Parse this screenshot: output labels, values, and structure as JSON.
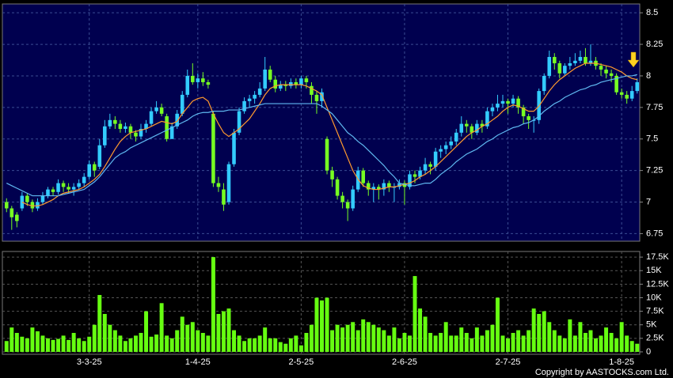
{
  "chart_data": [
    {
      "type": "candlestick",
      "up_color": "#33ccff",
      "down_color": "#77ff22",
      "ylim": [
        6.69,
        8.57
      ],
      "yticks": [
        6.75,
        7,
        7.25,
        7.5,
        7.75,
        8,
        8.25,
        8.5
      ],
      "grid": true,
      "candles": [
        [
          7.0,
          7.03,
          6.92,
          6.95
        ],
        [
          6.95,
          6.97,
          6.78,
          6.88
        ],
        [
          6.9,
          6.92,
          6.8,
          6.85
        ],
        [
          6.95,
          7.08,
          6.93,
          7.05
        ],
        [
          7.05,
          7.07,
          6.97,
          7.0
        ],
        [
          7.0,
          7.02,
          6.92,
          6.95
        ],
        [
          6.95,
          7.03,
          6.93,
          7.0
        ],
        [
          7.0,
          7.08,
          6.98,
          7.05
        ],
        [
          7.05,
          7.12,
          7.03,
          7.1
        ],
        [
          7.1,
          7.12,
          7.05,
          7.08
        ],
        [
          7.08,
          7.18,
          7.06,
          7.15
        ],
        [
          7.15,
          7.17,
          7.08,
          7.12
        ],
        [
          7.12,
          7.15,
          7.07,
          7.1
        ],
        [
          7.1,
          7.15,
          7.05,
          7.12
        ],
        [
          7.12,
          7.18,
          7.1,
          7.15
        ],
        [
          7.15,
          7.23,
          7.12,
          7.2
        ],
        [
          7.2,
          7.33,
          7.18,
          7.3
        ],
        [
          7.3,
          7.32,
          7.2,
          7.25
        ],
        [
          7.28,
          7.5,
          7.26,
          7.45
        ],
        [
          7.45,
          7.65,
          7.43,
          7.6
        ],
        [
          7.6,
          7.7,
          7.58,
          7.65
        ],
        [
          7.65,
          7.68,
          7.58,
          7.62
        ],
        [
          7.62,
          7.65,
          7.55,
          7.58
        ],
        [
          7.58,
          7.63,
          7.55,
          7.6
        ],
        [
          7.6,
          7.62,
          7.5,
          7.55
        ],
        [
          7.55,
          7.57,
          7.48,
          7.52
        ],
        [
          7.52,
          7.62,
          7.5,
          7.58
        ],
        [
          7.58,
          7.65,
          7.55,
          7.62
        ],
        [
          7.62,
          7.75,
          7.6,
          7.72
        ],
        [
          7.72,
          7.8,
          7.7,
          7.75
        ],
        [
          7.75,
          7.78,
          7.68,
          7.7
        ],
        [
          7.68,
          7.7,
          7.48,
          7.5
        ],
        [
          7.5,
          7.63,
          7.5,
          7.6
        ],
        [
          7.6,
          7.73,
          7.58,
          7.7
        ],
        [
          7.7,
          7.88,
          7.68,
          7.85
        ],
        [
          7.85,
          8.05,
          7.83,
          8.0
        ],
        [
          8.0,
          8.1,
          7.93,
          7.95
        ],
        [
          7.95,
          8.02,
          7.9,
          7.98
        ],
        [
          7.98,
          8.03,
          7.92,
          7.95
        ],
        [
          7.95,
          7.97,
          7.9,
          7.93
        ],
        [
          7.7,
          7.72,
          7.12,
          7.15
        ],
        [
          7.15,
          7.2,
          7.08,
          7.12
        ],
        [
          7.1,
          7.15,
          6.93,
          6.98
        ],
        [
          7.0,
          7.32,
          6.98,
          7.3
        ],
        [
          7.3,
          7.58,
          7.28,
          7.55
        ],
        [
          7.55,
          7.75,
          7.53,
          7.72
        ],
        [
          7.72,
          7.83,
          7.7,
          7.8
        ],
        [
          7.8,
          7.85,
          7.75,
          7.82
        ],
        [
          7.82,
          7.88,
          7.78,
          7.85
        ],
        [
          7.85,
          7.95,
          7.83,
          7.9
        ],
        [
          7.9,
          8.15,
          7.88,
          8.05
        ],
        [
          8.05,
          8.08,
          7.95,
          7.97
        ],
        [
          7.97,
          8.0,
          7.87,
          7.9
        ],
        [
          7.9,
          7.96,
          7.88,
          7.93
        ],
        [
          7.93,
          7.96,
          7.88,
          7.92
        ],
        [
          7.92,
          7.98,
          7.9,
          7.95
        ],
        [
          7.95,
          7.98,
          7.9,
          7.93
        ],
        [
          7.93,
          8.0,
          7.9,
          7.98
        ],
        [
          7.98,
          8.0,
          7.9,
          7.95
        ],
        [
          7.92,
          7.95,
          7.78,
          7.85
        ],
        [
          7.85,
          7.88,
          7.7,
          7.8
        ],
        [
          7.8,
          7.9,
          7.75,
          7.87
        ],
        [
          7.5,
          7.52,
          7.22,
          7.25
        ],
        [
          7.25,
          7.28,
          7.12,
          7.18
        ],
        [
          7.18,
          7.2,
          7.02,
          7.05
        ],
        [
          7.05,
          7.08,
          6.95,
          7.0
        ],
        [
          7.0,
          7.02,
          6.85,
          6.95
        ],
        [
          6.95,
          7.13,
          6.93,
          7.1
        ],
        [
          7.1,
          7.28,
          7.08,
          7.25
        ],
        [
          7.25,
          7.27,
          7.12,
          7.15
        ],
        [
          7.15,
          7.17,
          7.05,
          7.1
        ],
        [
          7.1,
          7.15,
          7.0,
          7.12
        ],
        [
          7.12,
          7.14,
          7.02,
          7.1
        ],
        [
          7.1,
          7.18,
          7.05,
          7.15
        ],
        [
          7.15,
          7.17,
          7.08,
          7.12
        ],
        [
          7.12,
          7.15,
          7.0,
          7.12
        ],
        [
          7.12,
          7.18,
          7.1,
          7.15
        ],
        [
          7.15,
          7.17,
          6.98,
          7.12
        ],
        [
          7.12,
          7.25,
          7.1,
          7.22
        ],
        [
          7.22,
          7.25,
          7.15,
          7.2
        ],
        [
          7.2,
          7.28,
          7.18,
          7.25
        ],
        [
          7.25,
          7.35,
          7.22,
          7.3
        ],
        [
          7.3,
          7.32,
          7.22,
          7.28
        ],
        [
          7.28,
          7.43,
          7.25,
          7.4
        ],
        [
          7.4,
          7.45,
          7.35,
          7.42
        ],
        [
          7.42,
          7.48,
          7.38,
          7.45
        ],
        [
          7.45,
          7.52,
          7.42,
          7.48
        ],
        [
          7.48,
          7.58,
          7.45,
          7.55
        ],
        [
          7.55,
          7.68,
          7.52,
          7.62
        ],
        [
          7.62,
          7.65,
          7.55,
          7.6
        ],
        [
          7.6,
          7.62,
          7.5,
          7.55
        ],
        [
          7.55,
          7.65,
          7.53,
          7.62
        ],
        [
          7.62,
          7.65,
          7.55,
          7.6
        ],
        [
          7.6,
          7.75,
          7.58,
          7.72
        ],
        [
          7.72,
          7.78,
          7.68,
          7.75
        ],
        [
          7.75,
          7.85,
          7.72,
          7.78
        ],
        [
          7.78,
          7.85,
          7.75,
          7.8
        ],
        [
          7.8,
          7.82,
          7.7,
          7.78
        ],
        [
          7.78,
          7.85,
          7.75,
          7.82
        ],
        [
          7.82,
          7.84,
          7.7,
          7.75
        ],
        [
          7.75,
          7.77,
          7.62,
          7.68
        ],
        [
          7.68,
          7.7,
          7.58,
          7.65
        ],
        [
          7.65,
          7.68,
          7.55,
          7.65
        ],
        [
          7.65,
          7.9,
          7.62,
          7.88
        ],
        [
          7.88,
          8.02,
          7.85,
          8.0
        ],
        [
          8.0,
          8.2,
          7.98,
          8.15
        ],
        [
          8.15,
          8.18,
          8.05,
          8.1
        ],
        [
          8.1,
          8.12,
          7.98,
          8.02
        ],
        [
          8.02,
          8.1,
          8.0,
          8.08
        ],
        [
          8.08,
          8.15,
          8.05,
          8.1
        ],
        [
          8.1,
          8.18,
          8.08,
          8.12
        ],
        [
          8.12,
          8.2,
          8.1,
          8.15
        ],
        [
          8.15,
          8.22,
          8.08,
          8.1
        ],
        [
          8.1,
          8.25,
          8.08,
          8.12
        ],
        [
          8.12,
          8.15,
          8.05,
          8.08
        ],
        [
          8.08,
          8.1,
          8.0,
          8.05
        ],
        [
          8.05,
          8.08,
          7.98,
          8.02
        ],
        [
          8.02,
          8.05,
          7.95,
          8.0
        ],
        [
          8.0,
          8.02,
          7.85,
          7.87
        ],
        [
          7.87,
          7.9,
          7.82,
          7.85
        ],
        [
          7.85,
          7.88,
          7.78,
          7.82
        ],
        [
          7.82,
          7.92,
          7.8,
          7.88
        ],
        [
          7.88,
          7.98,
          7.86,
          7.95
        ]
      ],
      "series": [
        {
          "color": "#ff9a2e",
          "values": [
            null,
            null,
            null,
            7.0,
            6.98,
            6.97,
            6.97,
            6.98,
            7.0,
            7.02,
            7.05,
            7.07,
            7.08,
            7.09,
            7.1,
            7.12,
            7.15,
            7.18,
            7.22,
            7.28,
            7.35,
            7.42,
            7.48,
            7.52,
            7.55,
            7.56,
            7.57,
            7.58,
            7.6,
            7.62,
            7.64,
            7.63,
            7.62,
            7.64,
            7.7,
            7.75,
            7.8,
            7.82,
            7.83,
            7.8,
            7.7,
            7.62,
            7.55,
            7.52,
            7.55,
            7.58,
            7.62,
            7.66,
            7.72,
            7.78,
            7.85,
            7.9,
            7.92,
            7.93,
            7.93,
            7.93,
            7.93,
            7.93,
            7.92,
            7.9,
            7.88,
            7.85,
            7.75,
            7.65,
            7.55,
            7.45,
            7.35,
            7.25,
            7.18,
            7.13,
            7.11,
            7.1,
            7.1,
            7.11,
            7.12,
            7.12,
            7.13,
            7.14,
            7.15,
            7.17,
            7.2,
            7.22,
            7.25,
            7.28,
            7.32,
            7.36,
            7.4,
            7.44,
            7.48,
            7.52,
            7.55,
            7.57,
            7.6,
            7.62,
            7.65,
            7.68,
            7.72,
            7.75,
            7.77,
            7.76,
            7.74,
            7.72,
            7.72,
            7.76,
            7.82,
            7.88,
            7.93,
            7.97,
            8.0,
            8.03,
            8.06,
            8.08,
            8.1,
            8.1,
            8.1,
            8.09,
            8.08,
            8.07,
            8.05,
            8.03,
            8.0,
            7.98,
            7.97
          ]
        },
        {
          "color": "#5fb8f0",
          "values": [
            7.15,
            7.13,
            7.11,
            7.09,
            7.07,
            7.05,
            7.05,
            7.05,
            7.05,
            7.05,
            7.05,
            7.06,
            7.07,
            7.08,
            7.09,
            7.1,
            7.13,
            7.16,
            7.2,
            7.25,
            7.3,
            7.35,
            7.38,
            7.4,
            7.43,
            7.45,
            7.47,
            7.49,
            7.51,
            7.53,
            7.55,
            7.57,
            7.59,
            7.61,
            7.63,
            7.65,
            7.68,
            7.7,
            7.71,
            7.71,
            7.72,
            7.72,
            7.72,
            7.73,
            7.73,
            7.73,
            7.74,
            7.75,
            7.76,
            7.77,
            7.78,
            7.78,
            7.78,
            7.78,
            7.78,
            7.78,
            7.78,
            7.78,
            7.78,
            7.78,
            7.78,
            7.76,
            7.73,
            7.7,
            7.65,
            7.6,
            7.55,
            7.52,
            7.48,
            7.45,
            7.41,
            7.37,
            7.33,
            7.29,
            7.24,
            7.2,
            7.15,
            7.14,
            7.13,
            7.13,
            7.14,
            7.15,
            7.15,
            7.18,
            7.22,
            7.25,
            7.28,
            7.32,
            7.35,
            7.38,
            7.4,
            7.42,
            7.45,
            7.48,
            7.5,
            7.53,
            7.55,
            7.57,
            7.59,
            7.6,
            7.62,
            7.63,
            7.65,
            7.68,
            7.72,
            7.75,
            7.78,
            7.8,
            7.83,
            7.85,
            7.87,
            7.89,
            7.9,
            7.92,
            7.93,
            7.95,
            7.96,
            7.97,
            7.98,
            7.99,
            8.0,
            8.0,
            8.01
          ]
        }
      ]
    },
    {
      "type": "bar",
      "color": "#66ff11",
      "ylim": [
        -445,
        18540
      ],
      "yticks": [
        0,
        {
          "value": 2500,
          "label": "2.5K"
        },
        {
          "value": 5000,
          "label": "5K"
        },
        {
          "value": 7500,
          "label": "7.5K"
        },
        {
          "value": 10000,
          "label": "10K"
        },
        {
          "value": 12500,
          "label": "12.5K"
        },
        {
          "value": 15000,
          "label": "15K"
        },
        {
          "value": 17500,
          "label": "17.5K"
        }
      ],
      "grid": true,
      "categories": [
        null,
        null,
        null,
        null,
        null,
        null,
        null,
        null,
        null,
        null,
        null,
        null,
        null,
        null,
        null,
        null,
        "3-3-25",
        null,
        null,
        null,
        null,
        null,
        null,
        null,
        null,
        null,
        null,
        null,
        null,
        null,
        null,
        null,
        null,
        null,
        null,
        null,
        null,
        "1-4-25",
        null,
        null,
        null,
        null,
        null,
        null,
        null,
        null,
        null,
        null,
        null,
        null,
        null,
        null,
        null,
        null,
        null,
        null,
        null,
        "2-5-25",
        null,
        null,
        null,
        null,
        null,
        null,
        null,
        null,
        null,
        null,
        null,
        null,
        null,
        null,
        null,
        null,
        null,
        null,
        null,
        "2-6-25",
        null,
        null,
        null,
        null,
        null,
        null,
        null,
        null,
        null,
        null,
        null,
        null,
        null,
        null,
        null,
        null,
        null,
        null,
        null,
        "2-7-25",
        null,
        null,
        null,
        null,
        null,
        null,
        null,
        null,
        null,
        null,
        null,
        null,
        null,
        null,
        null,
        null,
        null,
        null,
        null,
        null,
        null,
        "1-8-25",
        null,
        null,
        null
      ],
      "values": [
        2000,
        4500,
        3500,
        2800,
        2500,
        4500,
        3800,
        3000,
        2500,
        2200,
        2400,
        3000,
        2200,
        3500,
        2500,
        2000,
        2800,
        5000,
        10500,
        7000,
        5000,
        4000,
        3000,
        2000,
        2500,
        3000,
        3500,
        7500,
        2800,
        3200,
        9000,
        3000,
        2500,
        4000,
        6500,
        5000,
        5500,
        4000,
        3500,
        3000,
        17500,
        7000,
        7500,
        8000,
        4000,
        3000,
        2000,
        2500,
        2500,
        3000,
        4500,
        2500,
        2500,
        1800,
        1500,
        2500,
        3000,
        1200,
        3500,
        5000,
        10000,
        9500,
        10000,
        4000,
        5000,
        4500,
        5000,
        5500,
        4000,
        6000,
        5500,
        5000,
        4500,
        4000,
        3000,
        4500,
        2500,
        3500,
        3000,
        14000,
        8000,
        6500,
        3500,
        3000,
        3500,
        5500,
        3000,
        3000,
        4500,
        3500,
        2500,
        4500,
        3000,
        4000,
        5000,
        10000,
        3000,
        2500,
        3500,
        4000,
        3000,
        4000,
        8000,
        7000,
        7500,
        5500,
        4000,
        3000,
        2500,
        6000,
        3000,
        5500,
        3500,
        4000,
        2500,
        3000,
        4500,
        3500,
        2500,
        5500,
        3000,
        2000,
        1500
      ],
      "annotation": "Copyright by AASTOCKS.com Ltd."
    }
  ]
}
